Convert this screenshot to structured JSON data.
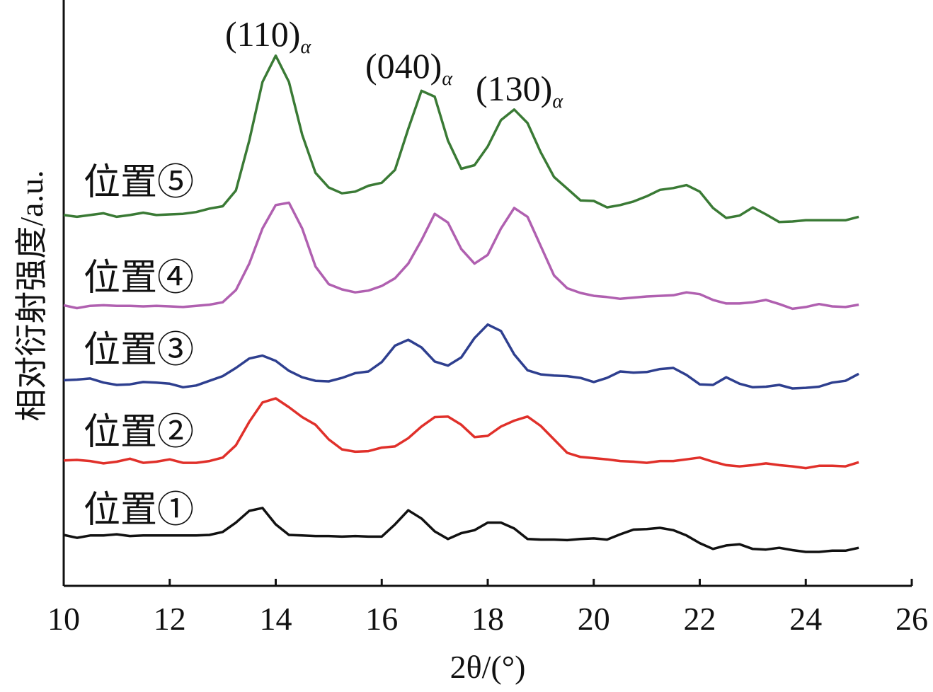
{
  "chart_data": {
    "type": "line",
    "xlabel": "2θ/(°)",
    "ylabel": "相对衍射强度/a.u.",
    "xlim": [
      10,
      26
    ],
    "xticks": [
      10,
      12,
      14,
      16,
      18,
      20,
      22,
      24,
      26
    ],
    "ylim": [
      0,
      100
    ],
    "x": [
      10,
      10.25,
      10.5,
      10.75,
      11,
      11.25,
      11.5,
      11.75,
      12,
      12.25,
      12.5,
      12.75,
      13,
      13.25,
      13.5,
      13.75,
      14,
      14.25,
      14.5,
      14.75,
      15,
      15.25,
      15.5,
      15.75,
      16,
      16.25,
      16.5,
      16.75,
      17,
      17.25,
      17.5,
      17.75,
      18,
      18.25,
      18.5,
      18.75,
      19,
      19.25,
      19.5,
      19.75,
      20,
      20.25,
      20.5,
      20.75,
      21,
      21.25,
      21.5,
      21.75,
      22,
      22.25,
      22.5,
      22.75,
      23,
      23.25,
      23.5,
      23.75,
      24,
      24.25,
      24.5,
      24.75,
      25
    ],
    "series": [
      {
        "name": "位置①",
        "color": "#111111",
        "values": [
          8.7,
          8.2,
          8.6,
          8.6,
          8.8,
          8.5,
          8.6,
          8.6,
          8.6,
          8.6,
          8.6,
          8.7,
          9.2,
          10.8,
          12.8,
          13.3,
          10.5,
          8.7,
          8.6,
          8.5,
          8.5,
          8.4,
          8.5,
          8.4,
          8.4,
          10.5,
          12.9,
          11.5,
          9.3,
          8.0,
          9.0,
          9.5,
          10.8,
          10.8,
          9.8,
          8.0,
          7.9,
          7.9,
          7.8,
          8.0,
          8.1,
          7.9,
          8.8,
          9.6,
          9.7,
          9.9,
          9.5,
          8.6,
          7.3,
          6.3,
          6.9,
          7.1,
          6.3,
          6.2,
          6.5,
          6.1,
          5.8,
          5.8,
          6.0,
          6.0,
          6.5
        ]
      },
      {
        "name": "位置②",
        "color": "#e0302a",
        "values": [
          21.4,
          21.5,
          21.3,
          20.9,
          21.2,
          21.7,
          21.0,
          21.2,
          21.6,
          21.0,
          21.0,
          21.3,
          21.9,
          24,
          28,
          31.3,
          32,
          30.5,
          28.8,
          27.5,
          25,
          23.3,
          22.9,
          23.0,
          23.6,
          23.8,
          25.2,
          27.2,
          28.8,
          28.9,
          27.5,
          25.4,
          25.6,
          27.2,
          28.2,
          28.9,
          27.3,
          25,
          22.7,
          22.0,
          21.8,
          21.6,
          21.3,
          21.2,
          21.0,
          21.3,
          21.3,
          21.6,
          21.9,
          21.2,
          20.6,
          20.4,
          20.6,
          20.9,
          20.6,
          20.4,
          20.1,
          20.5,
          20.5,
          20.4,
          21.1
        ]
      },
      {
        "name": "位置③",
        "color": "#2e3f8f",
        "values": [
          35.1,
          35.2,
          35.4,
          34.7,
          34.3,
          34.4,
          34.8,
          34.7,
          34.5,
          33.9,
          34.2,
          35.0,
          35.8,
          37.2,
          38.8,
          39.3,
          38.4,
          36.7,
          35.6,
          35.0,
          34.9,
          35.5,
          36.3,
          36.6,
          38.2,
          41,
          42,
          40.7,
          38.3,
          37.6,
          39.0,
          42.3,
          44.6,
          43.5,
          39.5,
          36.8,
          36.1,
          35.9,
          35.8,
          35.5,
          34.8,
          35.5,
          36.6,
          36.4,
          36.5,
          37.0,
          37.2,
          36.0,
          34.4,
          34.3,
          35.6,
          34.5,
          33.9,
          34.0,
          34.3,
          33.7,
          33.8,
          34.0,
          34.7,
          35.0,
          36.2
        ]
      },
      {
        "name": "位置④",
        "color": "#b060b0",
        "values": [
          47.9,
          47.4,
          47.8,
          47.9,
          47.8,
          47.8,
          47.7,
          47.8,
          47.7,
          47.6,
          47.8,
          48.0,
          48.4,
          50.5,
          55,
          61,
          65,
          65.4,
          61,
          54.5,
          51.5,
          50.6,
          50.1,
          50.4,
          51.2,
          52.5,
          55,
          59,
          63.5,
          62,
          57.5,
          55,
          56.5,
          61,
          64.5,
          63,
          58,
          53,
          50.8,
          50,
          49.5,
          49.3,
          49.0,
          49.2,
          49.4,
          49.5,
          49.6,
          50.1,
          49.8,
          48.8,
          48.2,
          48.2,
          48.4,
          48.8,
          48.1,
          47.3,
          47.6,
          48.1,
          47.7,
          47.6,
          48.0
        ]
      },
      {
        "name": "位置⑤",
        "color": "#3a7a35",
        "values": [
          63.3,
          63.0,
          63.3,
          63.6,
          63.0,
          63.3,
          63.7,
          63.3,
          63.4,
          63.5,
          63.8,
          64.4,
          64.8,
          67.5,
          76,
          86,
          90.5,
          86,
          77,
          70.5,
          68,
          67,
          67.3,
          68.3,
          68.8,
          71,
          78,
          84.5,
          83.5,
          76,
          71.2,
          71.8,
          75,
          79.5,
          81.3,
          79,
          74,
          69.8,
          67.8,
          65.8,
          65.7,
          64.6,
          65.0,
          65.6,
          66.5,
          67.6,
          67.9,
          68.4,
          67.3,
          64.5,
          62.8,
          63.2,
          64.6,
          63.4,
          62.1,
          62.2,
          62.4,
          62.4,
          62.4,
          62.4,
          63
        ]
      }
    ],
    "annotations": [
      {
        "text": "(110)",
        "sub": "α"
      },
      {
        "text": "(040)",
        "sub": "α"
      },
      {
        "text": "(130)",
        "sub": "α"
      }
    ]
  }
}
